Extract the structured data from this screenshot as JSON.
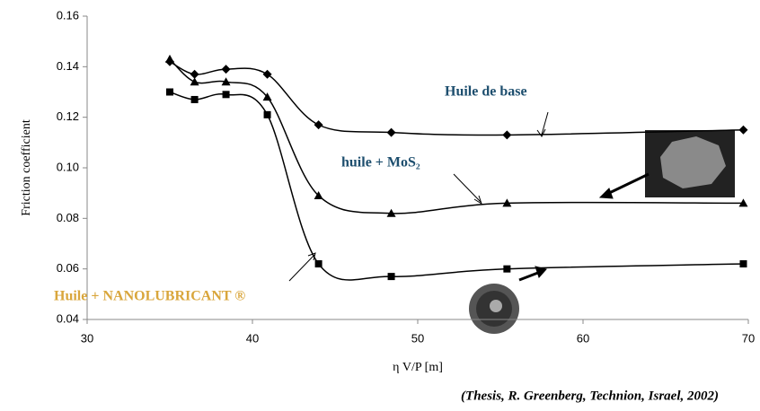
{
  "chart_data": {
    "type": "line",
    "x_label": "η V/P [m]",
    "y_label": "Friction coefficient",
    "xlim": [
      30,
      70
    ],
    "xticks": [
      30,
      40,
      50,
      60,
      70
    ],
    "ylim": [
      0.04,
      0.16
    ],
    "yticks": [
      0.04,
      0.06,
      0.08,
      {
        "value": 0.1,
        "label": "0.10"
      },
      0.12,
      0.14,
      0.16
    ],
    "series": [
      {
        "name": "Huile de base",
        "color": "#000000",
        "marker": "diamond",
        "x": [
          35,
          36.5,
          38.4,
          40.9,
          44,
          48.4,
          55.4,
          69.7
        ],
        "values": [
          0.142,
          0.137,
          0.139,
          0.137,
          0.117,
          0.114,
          0.113,
          0.115
        ]
      },
      {
        "name": "huile + MoS₂",
        "color": "#000000",
        "marker": "triangle",
        "x": [
          35,
          36.5,
          38.4,
          40.9,
          44,
          48.4,
          55.4,
          69.7
        ],
        "values": [
          0.143,
          0.134,
          0.134,
          0.128,
          0.089,
          0.082,
          0.086,
          0.086
        ]
      },
      {
        "name": "Huile + NANOLUBRICANT ®",
        "color": "#000000",
        "marker": "square",
        "x": [
          35,
          36.5,
          38.4,
          40.9,
          44,
          48.4,
          55.4,
          69.7
        ],
        "values": [
          0.13,
          0.127,
          0.129,
          0.121,
          0.062,
          0.057,
          0.06,
          0.062
        ]
      }
    ],
    "label_colors": [
      "#1d4e6e",
      "#1d4e6e",
      "#d9a63c"
    ],
    "source": "(Thesis, R. Greenberg, Technion, Israel, 2002)"
  }
}
